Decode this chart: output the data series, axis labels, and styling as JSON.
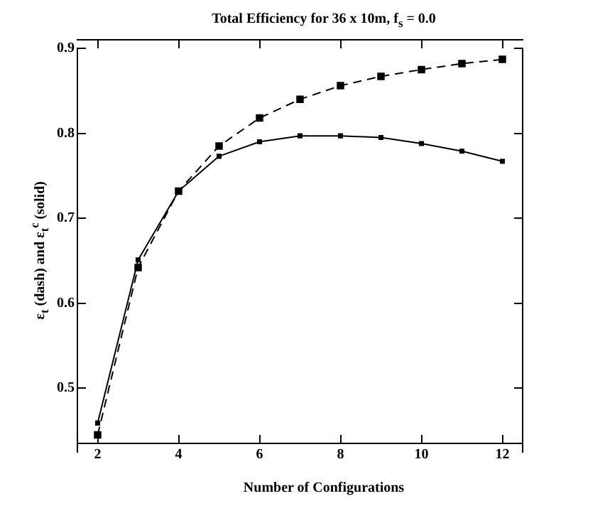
{
  "chart_data": {
    "type": "line",
    "title": "Total Efficiency for 36 x 10m, f$_{s}$ = 0.0",
    "xlabel": "Number of Configurations",
    "ylabel": "ε$_{t}$ (dash) and ε$_{t}$$^{c}$ (solid)",
    "x": [
      2,
      3,
      4,
      5,
      6,
      7,
      8,
      9,
      10,
      11,
      12
    ],
    "series": [
      {
        "color": "#000000",
        "line_style": "dashed",
        "values": [
          0.445,
          0.642,
          0.732,
          0.785,
          0.818,
          0.84,
          0.856,
          0.867,
          0.875,
          0.882,
          0.887
        ]
      },
      {
        "color": "#000000",
        "line_style": "solid",
        "values": [
          0.459,
          0.651,
          0.732,
          0.773,
          0.79,
          0.797,
          0.797,
          0.795,
          0.788,
          0.779,
          0.767
        ]
      }
    ],
    "xlim": [
      1.5,
      12.5
    ],
    "xticks": [
      2,
      4,
      6,
      8,
      10,
      12
    ],
    "ylim": [
      0.425,
      0.9
    ],
    "yticks": [
      0.5,
      0.6,
      0.7,
      0.8,
      0.9
    ],
    "grid": false,
    "legend": false,
    "marker": "square"
  }
}
